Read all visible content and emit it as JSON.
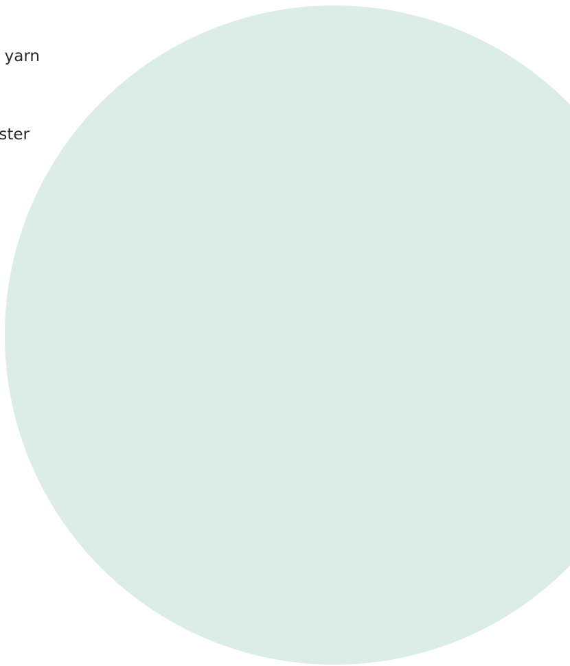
{
  "text_fragments": [
    "yarn",
    "ster"
  ],
  "colors": {
    "background": "#ffffff",
    "circle": "#dcece7",
    "text": "#2a2a2a"
  }
}
